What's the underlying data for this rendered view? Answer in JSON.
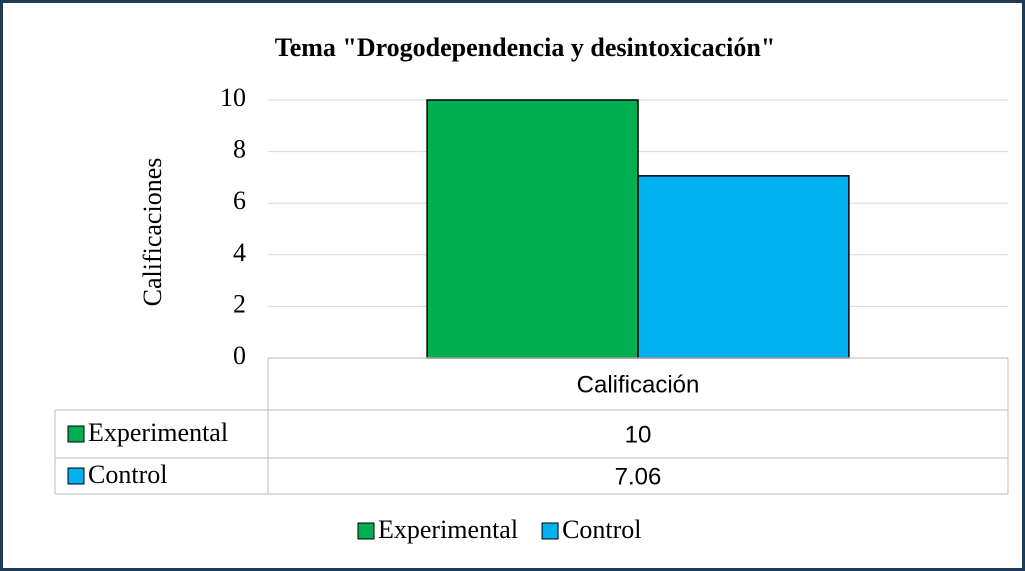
{
  "chart_data": {
    "type": "bar",
    "title": "Tema \"Drogodependencia y desintoxicación\"",
    "y_label": "Calificaciones",
    "categories": [
      "Calificación"
    ],
    "series": [
      {
        "name": "Experimental",
        "color": "#00b050",
        "values": [
          10
        ]
      },
      {
        "name": "Control",
        "color": "#00b0f0",
        "values": [
          7.06
        ]
      }
    ],
    "ylim": [
      0,
      10
    ],
    "yticks": [
      0,
      2,
      4,
      6,
      8,
      10
    ],
    "grid": true,
    "legend": "bottom",
    "data_table": true
  }
}
